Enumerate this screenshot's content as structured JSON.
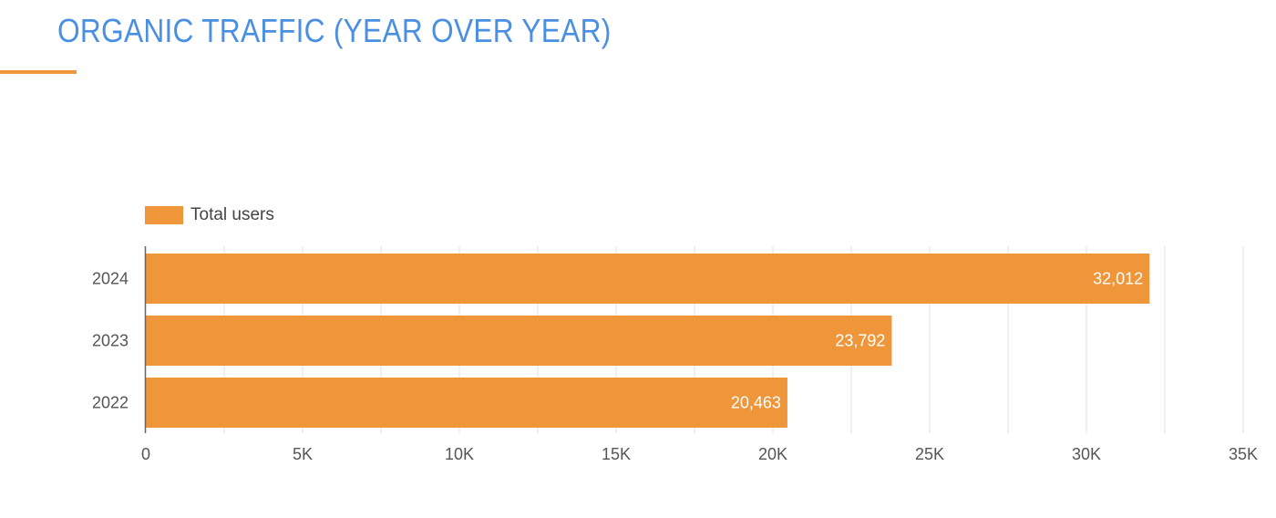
{
  "header": {
    "title": "ORGANIC TRAFFIC (YEAR OVER YEAR)"
  },
  "colors": {
    "title": "#4a90e2",
    "accent": "#f0963a",
    "bar": "#f0963a",
    "grid": "#e0e0e0",
    "axis": "#666666"
  },
  "legend": {
    "label": "Total users"
  },
  "chart_data": {
    "type": "bar",
    "orientation": "horizontal",
    "categories": [
      "2024",
      "2023",
      "2022"
    ],
    "series": [
      {
        "name": "Total users",
        "values": [
          32012,
          23792,
          20463
        ]
      }
    ],
    "data_labels": [
      "32,012",
      "23,792",
      "20,463"
    ],
    "xlim": [
      0,
      35000
    ],
    "xticks": [
      0,
      5000,
      10000,
      15000,
      20000,
      25000,
      30000,
      35000
    ],
    "xtick_labels": [
      "0",
      "5K",
      "10K",
      "15K",
      "20K",
      "25K",
      "30K",
      "35K"
    ],
    "grid": true,
    "legend_position": "top-left"
  }
}
